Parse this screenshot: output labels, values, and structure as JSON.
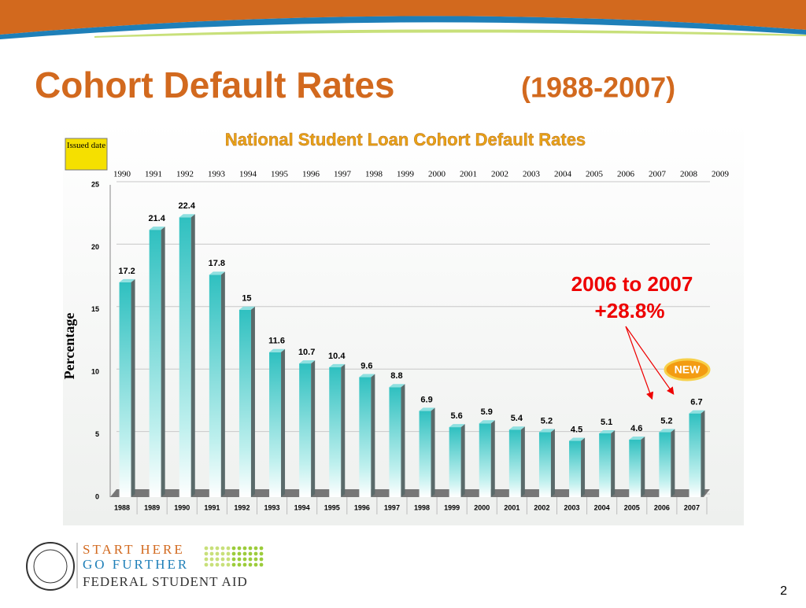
{
  "slide_title": "Cohort Default Rates",
  "slide_subtitle": "(1988-2007)",
  "chart_data": {
    "type": "bar",
    "title": "National Student Loan Cohort Default Rates",
    "issued_label": "Issued date",
    "issued_years": [
      "1990",
      "1991",
      "1992",
      "1993",
      "1994",
      "1995",
      "1996",
      "1997",
      "1998",
      "1999",
      "2000",
      "2001",
      "2002",
      "2003",
      "2004",
      "2005",
      "2006",
      "2007",
      "2008",
      "2009"
    ],
    "categories": [
      "1988",
      "1989",
      "1990",
      "1991",
      "1992",
      "1993",
      "1994",
      "1995",
      "1996",
      "1997",
      "1998",
      "1999",
      "2000",
      "2001",
      "2002",
      "2003",
      "2004",
      "2005",
      "2006",
      "2007"
    ],
    "values": [
      17.2,
      21.4,
      22.4,
      17.8,
      15,
      11.6,
      10.7,
      10.4,
      9.6,
      8.8,
      6.9,
      5.6,
      5.9,
      5.4,
      5.2,
      4.5,
      5.1,
      4.6,
      5.2,
      6.7
    ],
    "color": "#33c6c6",
    "y_label": "Percentage",
    "ylim": [
      0,
      25
    ],
    "yticks": [
      0,
      5,
      10,
      15,
      20,
      25
    ],
    "grid": true,
    "annotation": [
      "2006 to 2007",
      "+28.8%"
    ],
    "badge": "NEW"
  },
  "footer": {
    "line1": "START HERE",
    "line2": "GO FURTHER",
    "line3": "FEDERAL STUDENT AID"
  },
  "page_number": "2"
}
